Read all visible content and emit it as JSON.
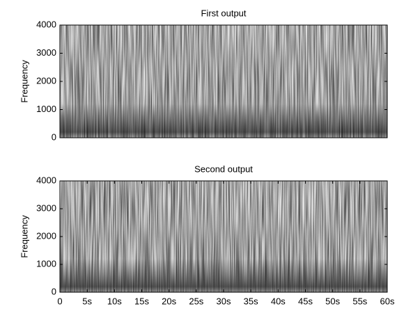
{
  "chart_data": [
    {
      "type": "spectrogram",
      "title": "First output",
      "ylabel": "Frequency",
      "ylim": [
        0,
        4000
      ],
      "yticks": [
        0,
        1000,
        2000,
        3000,
        4000
      ]
    },
    {
      "type": "spectrogram",
      "title": "Second output",
      "ylabel": "Frequency",
      "ylim": [
        0,
        4000
      ],
      "yticks": [
        0,
        1000,
        2000,
        3000,
        4000
      ],
      "xlim": [
        0,
        60
      ],
      "xticks": [
        0,
        {
          "value": 5,
          "label": "5s"
        },
        {
          "value": 10,
          "label": "10s"
        },
        {
          "value": 15,
          "label": "15s"
        },
        {
          "value": 20,
          "label": "20s"
        },
        {
          "value": 25,
          "label": "25s"
        },
        {
          "value": 30,
          "label": "30s"
        },
        {
          "value": 35,
          "label": "35s"
        },
        {
          "value": 40,
          "label": "40s"
        },
        {
          "value": 45,
          "label": "45s"
        },
        {
          "value": 50,
          "label": "50s"
        },
        {
          "value": 55,
          "label": "55s"
        },
        {
          "value": 60,
          "label": "60s"
        }
      ]
    }
  ]
}
